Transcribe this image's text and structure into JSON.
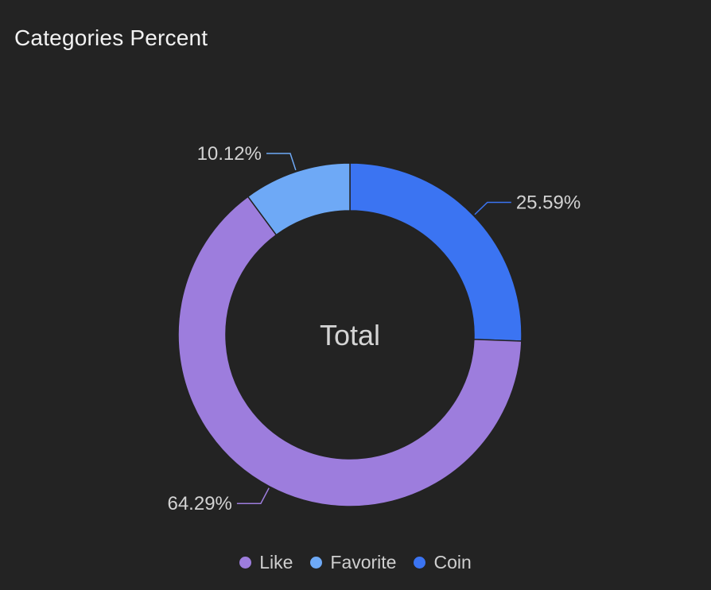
{
  "card": {
    "title": "Categories Percent"
  },
  "chart_data": {
    "type": "pie",
    "style": "donut",
    "title": "Categories Percent",
    "center_label": "Total",
    "slices": [
      {
        "name": "Coin",
        "value": 25.59,
        "label": "25.59%",
        "color": "#3b74f2"
      },
      {
        "name": "Like",
        "value": 64.29,
        "label": "64.29%",
        "color": "#9d7ddd"
      },
      {
        "name": "Favorite",
        "value": 10.12,
        "label": "10.12%",
        "color": "#6ea9f6"
      }
    ],
    "legend": {
      "placement": "bottom-center",
      "items": [
        {
          "name": "Like",
          "color": "#9d7ddd"
        },
        {
          "name": "Favorite",
          "color": "#6ea9f6"
        },
        {
          "name": "Coin",
          "color": "#3b74f2"
        }
      ]
    }
  }
}
